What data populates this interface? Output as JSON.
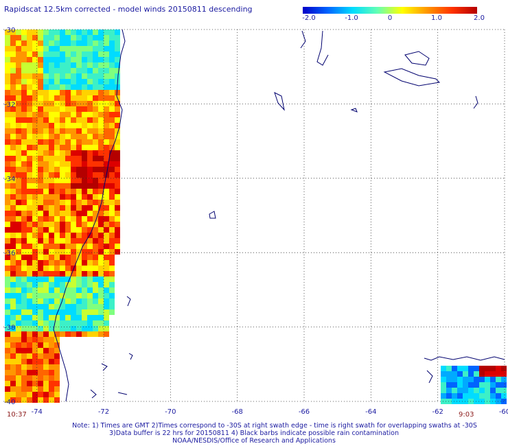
{
  "title": "Rapidscat 12.5km corrected - model winds 20150811 descending",
  "colorbar": {
    "tick_labels": [
      "-2.0",
      "-1.0",
      "0",
      "1.0",
      "2.0"
    ],
    "tick_values": [
      -2.0,
      -1.0,
      0,
      1.0,
      2.0
    ],
    "colors": [
      "#0000c8",
      "#0064ff",
      "#00dcff",
      "#64ffb4",
      "#ffff00",
      "#ff9600",
      "#ff3200",
      "#b40000"
    ]
  },
  "map": {
    "lon_range": [
      -75,
      -60
    ],
    "lat_range": [
      -30,
      -40
    ],
    "lon_ticks": [
      -74,
      -72,
      -70,
      -68,
      -66,
      -64,
      -62,
      -60
    ],
    "lat_ticks": [
      -30,
      -32,
      -34,
      -36,
      -38,
      -40
    ],
    "lon_labels": [
      "-74",
      "-72",
      "-70",
      "-68",
      "-66",
      "-64",
      "-62",
      "-60"
    ],
    "lat_labels": [
      "-30",
      "-32",
      "-34",
      "-36",
      "-38",
      "-40"
    ],
    "gridline_style": "dotted",
    "coast_color": "#00006e"
  },
  "time_left": "10:37",
  "time_right": "9:03",
  "notes": [
    "Note: 1) Times are GMT 2)Times correspond to -30S at right swath edge - time is right swath for overlapping swaths at -30S",
    "3)Data buffer is 22 hrs for 20150811 4) Black barbs indicate possible rain contamination",
    "NOAA/NESDIS/Office of Research and Applications"
  ]
}
